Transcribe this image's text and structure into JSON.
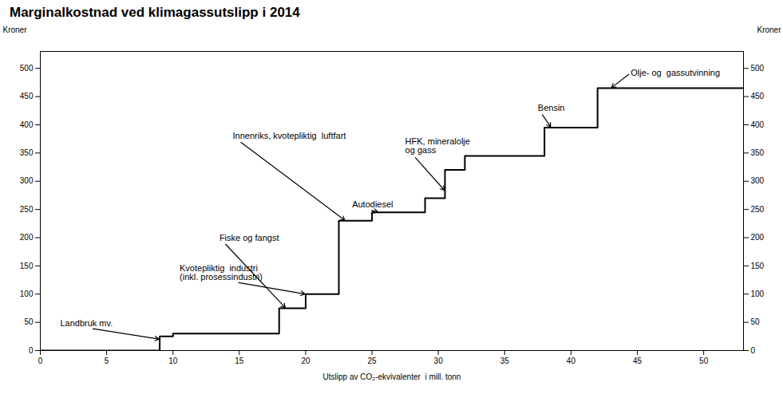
{
  "chart_data": {
    "type": "line",
    "title": "Marginalkostnad ved klimagassutslipp i 2014",
    "xlabel": "Utslipp av CO₂-ekvivalenter  i mill. tonn",
    "ylabel": "Kroner",
    "y2label": "Kroner",
    "x": [
      0,
      9,
      9,
      10,
      10,
      18,
      18,
      20,
      20,
      22.5,
      22.5,
      25,
      25,
      29,
      29,
      30.5,
      30.5,
      32,
      32,
      38,
      38,
      42,
      42,
      53
    ],
    "values": [
      0,
      0,
      25,
      25,
      30,
      30,
      75,
      75,
      100,
      100,
      230,
      230,
      245,
      245,
      270,
      270,
      320,
      320,
      345,
      345,
      395,
      395,
      465,
      465
    ],
    "xlim": [
      0,
      53
    ],
    "ylim": [
      0,
      530
    ],
    "xticks": [
      0,
      5,
      10,
      15,
      20,
      25,
      30,
      35,
      40,
      45,
      50
    ],
    "yticks": [
      0,
      50,
      100,
      150,
      200,
      250,
      300,
      350,
      400,
      450,
      500
    ],
    "y2lim": [
      0,
      530
    ],
    "y2ticks": [
      0,
      50,
      100,
      150,
      200,
      250,
      300,
      350,
      400,
      450,
      500
    ],
    "grid": false,
    "annotations": [
      {
        "text": "Landbruk mv.",
        "xy": [
          9.0,
          20
        ],
        "xytext": [
          1.5,
          48
        ],
        "arrow": true
      },
      {
        "text": "Kvotepliktig  industri\n(inkl. prosessindustri)",
        "xy": [
          20.0,
          100
        ],
        "xytext": [
          10.5,
          138
        ],
        "arrow": true
      },
      {
        "text": "Fiske og fangst",
        "xy": [
          18.5,
          75
        ],
        "xytext": [
          13.5,
          200
        ],
        "arrow": true
      },
      {
        "text": "Innenriks, kvotepliktig  luftfart",
        "xy": [
          23.0,
          230
        ],
        "xytext": [
          14.5,
          380
        ],
        "arrow": true
      },
      {
        "text": "Autodiesel",
        "xy": [
          25.5,
          245
        ],
        "xytext": [
          23.5,
          258
        ],
        "arrow": true
      },
      {
        "text": "HFK, mineralolje\nog gass",
        "xy": [
          30.5,
          283
        ],
        "xytext": [
          27.5,
          362
        ],
        "arrow": true
      },
      {
        "text": "Bensin",
        "xy": [
          38.5,
          395
        ],
        "xytext": [
          37.5,
          430
        ],
        "arrow": true
      },
      {
        "text": "Olje- og  gassutvinning",
        "xy": [
          43.0,
          465
        ],
        "xytext": [
          44.5,
          492
        ],
        "arrow": true
      }
    ]
  }
}
